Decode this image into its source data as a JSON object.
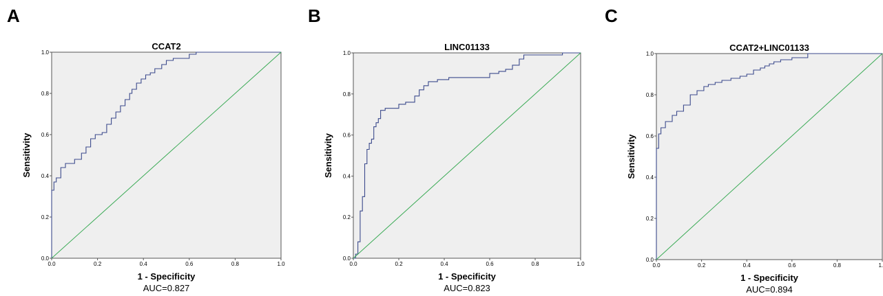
{
  "panels": [
    {
      "letter": "A"
    },
    {
      "letter": "B"
    },
    {
      "letter": "C"
    }
  ],
  "colors": {
    "roc": "#3b4a8c",
    "reference": "#3aaa55",
    "background": "#efefef"
  },
  "chart_data": [
    {
      "type": "line",
      "title": "CCAT2",
      "xlabel": "1 - Specificity",
      "ylabel": "Sensitivity",
      "annotation": "AUC=0.827",
      "xlim": [
        0,
        1
      ],
      "ylim": [
        0,
        1
      ],
      "xticks": [
        "0.0",
        "0.2",
        "0.4",
        "0.6",
        "0.8",
        "1.0"
      ],
      "yticks": [
        "0.0",
        "0.2",
        "0.4",
        "0.6",
        "0.8",
        "1.0"
      ],
      "grid": false,
      "series": [
        {
          "role": "roc",
          "x": [
            0,
            0,
            0.01,
            0.01,
            0.02,
            0.02,
            0.04,
            0.04,
            0.06,
            0.06,
            0.1,
            0.1,
            0.13,
            0.13,
            0.15,
            0.15,
            0.17,
            0.17,
            0.19,
            0.19,
            0.22,
            0.22,
            0.24,
            0.24,
            0.26,
            0.26,
            0.28,
            0.28,
            0.3,
            0.3,
            0.32,
            0.32,
            0.34,
            0.34,
            0.35,
            0.35,
            0.37,
            0.37,
            0.39,
            0.39,
            0.41,
            0.41,
            0.43,
            0.43,
            0.45,
            0.45,
            0.48,
            0.48,
            0.5,
            0.5,
            0.53,
            0.53,
            0.6,
            0.6,
            0.63,
            0.63,
            1.0
          ],
          "y": [
            0,
            0.33,
            0.33,
            0.37,
            0.37,
            0.39,
            0.39,
            0.44,
            0.44,
            0.46,
            0.46,
            0.48,
            0.48,
            0.51,
            0.51,
            0.54,
            0.54,
            0.58,
            0.58,
            0.6,
            0.6,
            0.61,
            0.61,
            0.65,
            0.65,
            0.68,
            0.68,
            0.71,
            0.71,
            0.74,
            0.74,
            0.77,
            0.77,
            0.8,
            0.8,
            0.82,
            0.82,
            0.85,
            0.85,
            0.87,
            0.87,
            0.89,
            0.89,
            0.9,
            0.9,
            0.92,
            0.92,
            0.94,
            0.94,
            0.96,
            0.96,
            0.97,
            0.97,
            0.99,
            0.99,
            1.0,
            1.0
          ]
        },
        {
          "role": "reference",
          "x": [
            0,
            1
          ],
          "y": [
            0,
            1
          ]
        }
      ]
    },
    {
      "type": "line",
      "title": "LINC01133",
      "xlabel": "1 - Specificity",
      "ylabel": "Sensitivity",
      "annotation": "AUC=0.823",
      "xlim": [
        0,
        1
      ],
      "ylim": [
        0,
        1
      ],
      "xticks": [
        "0.0",
        "0.2",
        "0.4",
        "0.6",
        "0.8",
        "1.0"
      ],
      "yticks": [
        "0.0",
        "0.2",
        "0.4",
        "0.6",
        "0.8",
        "1.0"
      ],
      "grid": false,
      "series": [
        {
          "role": "roc",
          "x": [
            0,
            0.01,
            0.01,
            0.02,
            0.02,
            0.03,
            0.03,
            0.04,
            0.04,
            0.05,
            0.05,
            0.06,
            0.06,
            0.07,
            0.07,
            0.08,
            0.08,
            0.09,
            0.09,
            0.1,
            0.1,
            0.11,
            0.11,
            0.12,
            0.12,
            0.14,
            0.14,
            0.2,
            0.2,
            0.23,
            0.23,
            0.27,
            0.27,
            0.29,
            0.29,
            0.31,
            0.31,
            0.33,
            0.33,
            0.37,
            0.37,
            0.42,
            0.42,
            0.6,
            0.6,
            0.64,
            0.64,
            0.67,
            0.67,
            0.7,
            0.7,
            0.73,
            0.73,
            0.75,
            0.75,
            0.92,
            0.92,
            1.0
          ],
          "y": [
            0,
            0,
            0.02,
            0.02,
            0.08,
            0.08,
            0.23,
            0.23,
            0.3,
            0.3,
            0.46,
            0.46,
            0.53,
            0.53,
            0.56,
            0.56,
            0.58,
            0.58,
            0.64,
            0.64,
            0.66,
            0.66,
            0.68,
            0.68,
            0.72,
            0.72,
            0.73,
            0.73,
            0.75,
            0.75,
            0.76,
            0.76,
            0.79,
            0.79,
            0.82,
            0.82,
            0.84,
            0.84,
            0.86,
            0.86,
            0.87,
            0.87,
            0.88,
            0.88,
            0.9,
            0.9,
            0.91,
            0.91,
            0.92,
            0.92,
            0.94,
            0.94,
            0.97,
            0.97,
            0.99,
            0.99,
            1.0,
            1.0
          ]
        },
        {
          "role": "reference",
          "x": [
            0,
            1
          ],
          "y": [
            0,
            1
          ]
        }
      ]
    },
    {
      "type": "line",
      "title": "CCAT2+LINC01133",
      "xlabel": "1 - Specificity",
      "ylabel": "Sensitivity",
      "annotation": "AUC=0.894",
      "xlim": [
        0,
        1
      ],
      "ylim": [
        0,
        1
      ],
      "xticks": [
        "0.0",
        "0.2",
        "0.4",
        "0.6",
        "0.8",
        "1.0"
      ],
      "yticks": [
        "0.0",
        "0.2",
        "0.4",
        "0.6",
        "0.8",
        "1.0"
      ],
      "grid": false,
      "series": [
        {
          "role": "roc",
          "x": [
            0,
            0,
            0.01,
            0.01,
            0.02,
            0.02,
            0.04,
            0.04,
            0.07,
            0.07,
            0.09,
            0.09,
            0.12,
            0.12,
            0.15,
            0.15,
            0.18,
            0.18,
            0.21,
            0.21,
            0.23,
            0.23,
            0.26,
            0.26,
            0.29,
            0.29,
            0.33,
            0.33,
            0.37,
            0.37,
            0.4,
            0.4,
            0.43,
            0.43,
            0.46,
            0.46,
            0.48,
            0.48,
            0.5,
            0.5,
            0.52,
            0.52,
            0.55,
            0.55,
            0.6,
            0.6,
            0.67,
            0.67,
            1.0
          ],
          "y": [
            0,
            0.54,
            0.54,
            0.61,
            0.61,
            0.64,
            0.64,
            0.67,
            0.67,
            0.7,
            0.7,
            0.72,
            0.72,
            0.75,
            0.75,
            0.8,
            0.8,
            0.82,
            0.82,
            0.84,
            0.84,
            0.85,
            0.85,
            0.86,
            0.86,
            0.87,
            0.87,
            0.88,
            0.88,
            0.89,
            0.89,
            0.9,
            0.9,
            0.92,
            0.92,
            0.93,
            0.93,
            0.94,
            0.94,
            0.95,
            0.95,
            0.96,
            0.96,
            0.97,
            0.97,
            0.98,
            0.98,
            1.0,
            1.0
          ]
        },
        {
          "role": "reference",
          "x": [
            0,
            1
          ],
          "y": [
            0,
            1
          ]
        }
      ]
    }
  ]
}
